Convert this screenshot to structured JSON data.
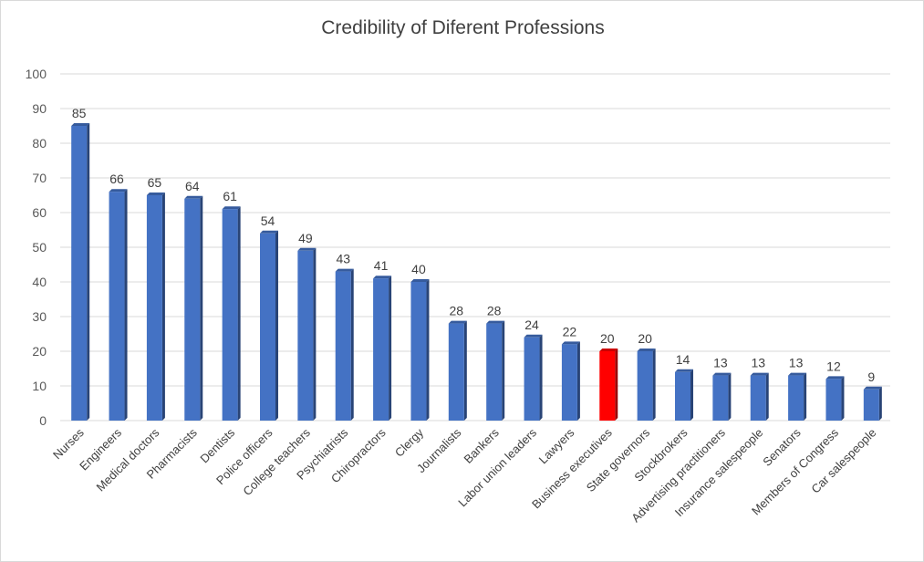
{
  "chart_data": {
    "type": "bar",
    "title": "Credibility of Diferent Professions",
    "xlabel": "",
    "ylabel": "",
    "ylim": [
      0,
      100
    ],
    "yticks": [
      "0",
      "10",
      "20",
      "30",
      "40",
      "50",
      "60",
      "70",
      "80",
      "90",
      "100"
    ],
    "grid": true,
    "legend": "none",
    "colors": {
      "bar": "#4472c4",
      "highlight": "#ff0000"
    },
    "categories": [
      "Nurses",
      "Engineers",
      "Medical doctors",
      "Pharmacists",
      "Dentists",
      "Police officers",
      "College teachers",
      "Psychiatrists",
      "Chiropractors",
      "Clergy",
      "Journalists",
      "Bankers",
      "Labor union leaders",
      "Lawyers",
      "Business executives",
      "State governors",
      "Stockbrokers",
      "Advertising practitioners",
      "Insurance salespeople",
      "Senators",
      "Members of Congress",
      "Car salespeople"
    ],
    "values": [
      85,
      66,
      65,
      64,
      61,
      54,
      49,
      43,
      41,
      40,
      28,
      28,
      24,
      22,
      20,
      20,
      14,
      13,
      13,
      13,
      12,
      9
    ],
    "highlighted_category": "Business executives"
  }
}
